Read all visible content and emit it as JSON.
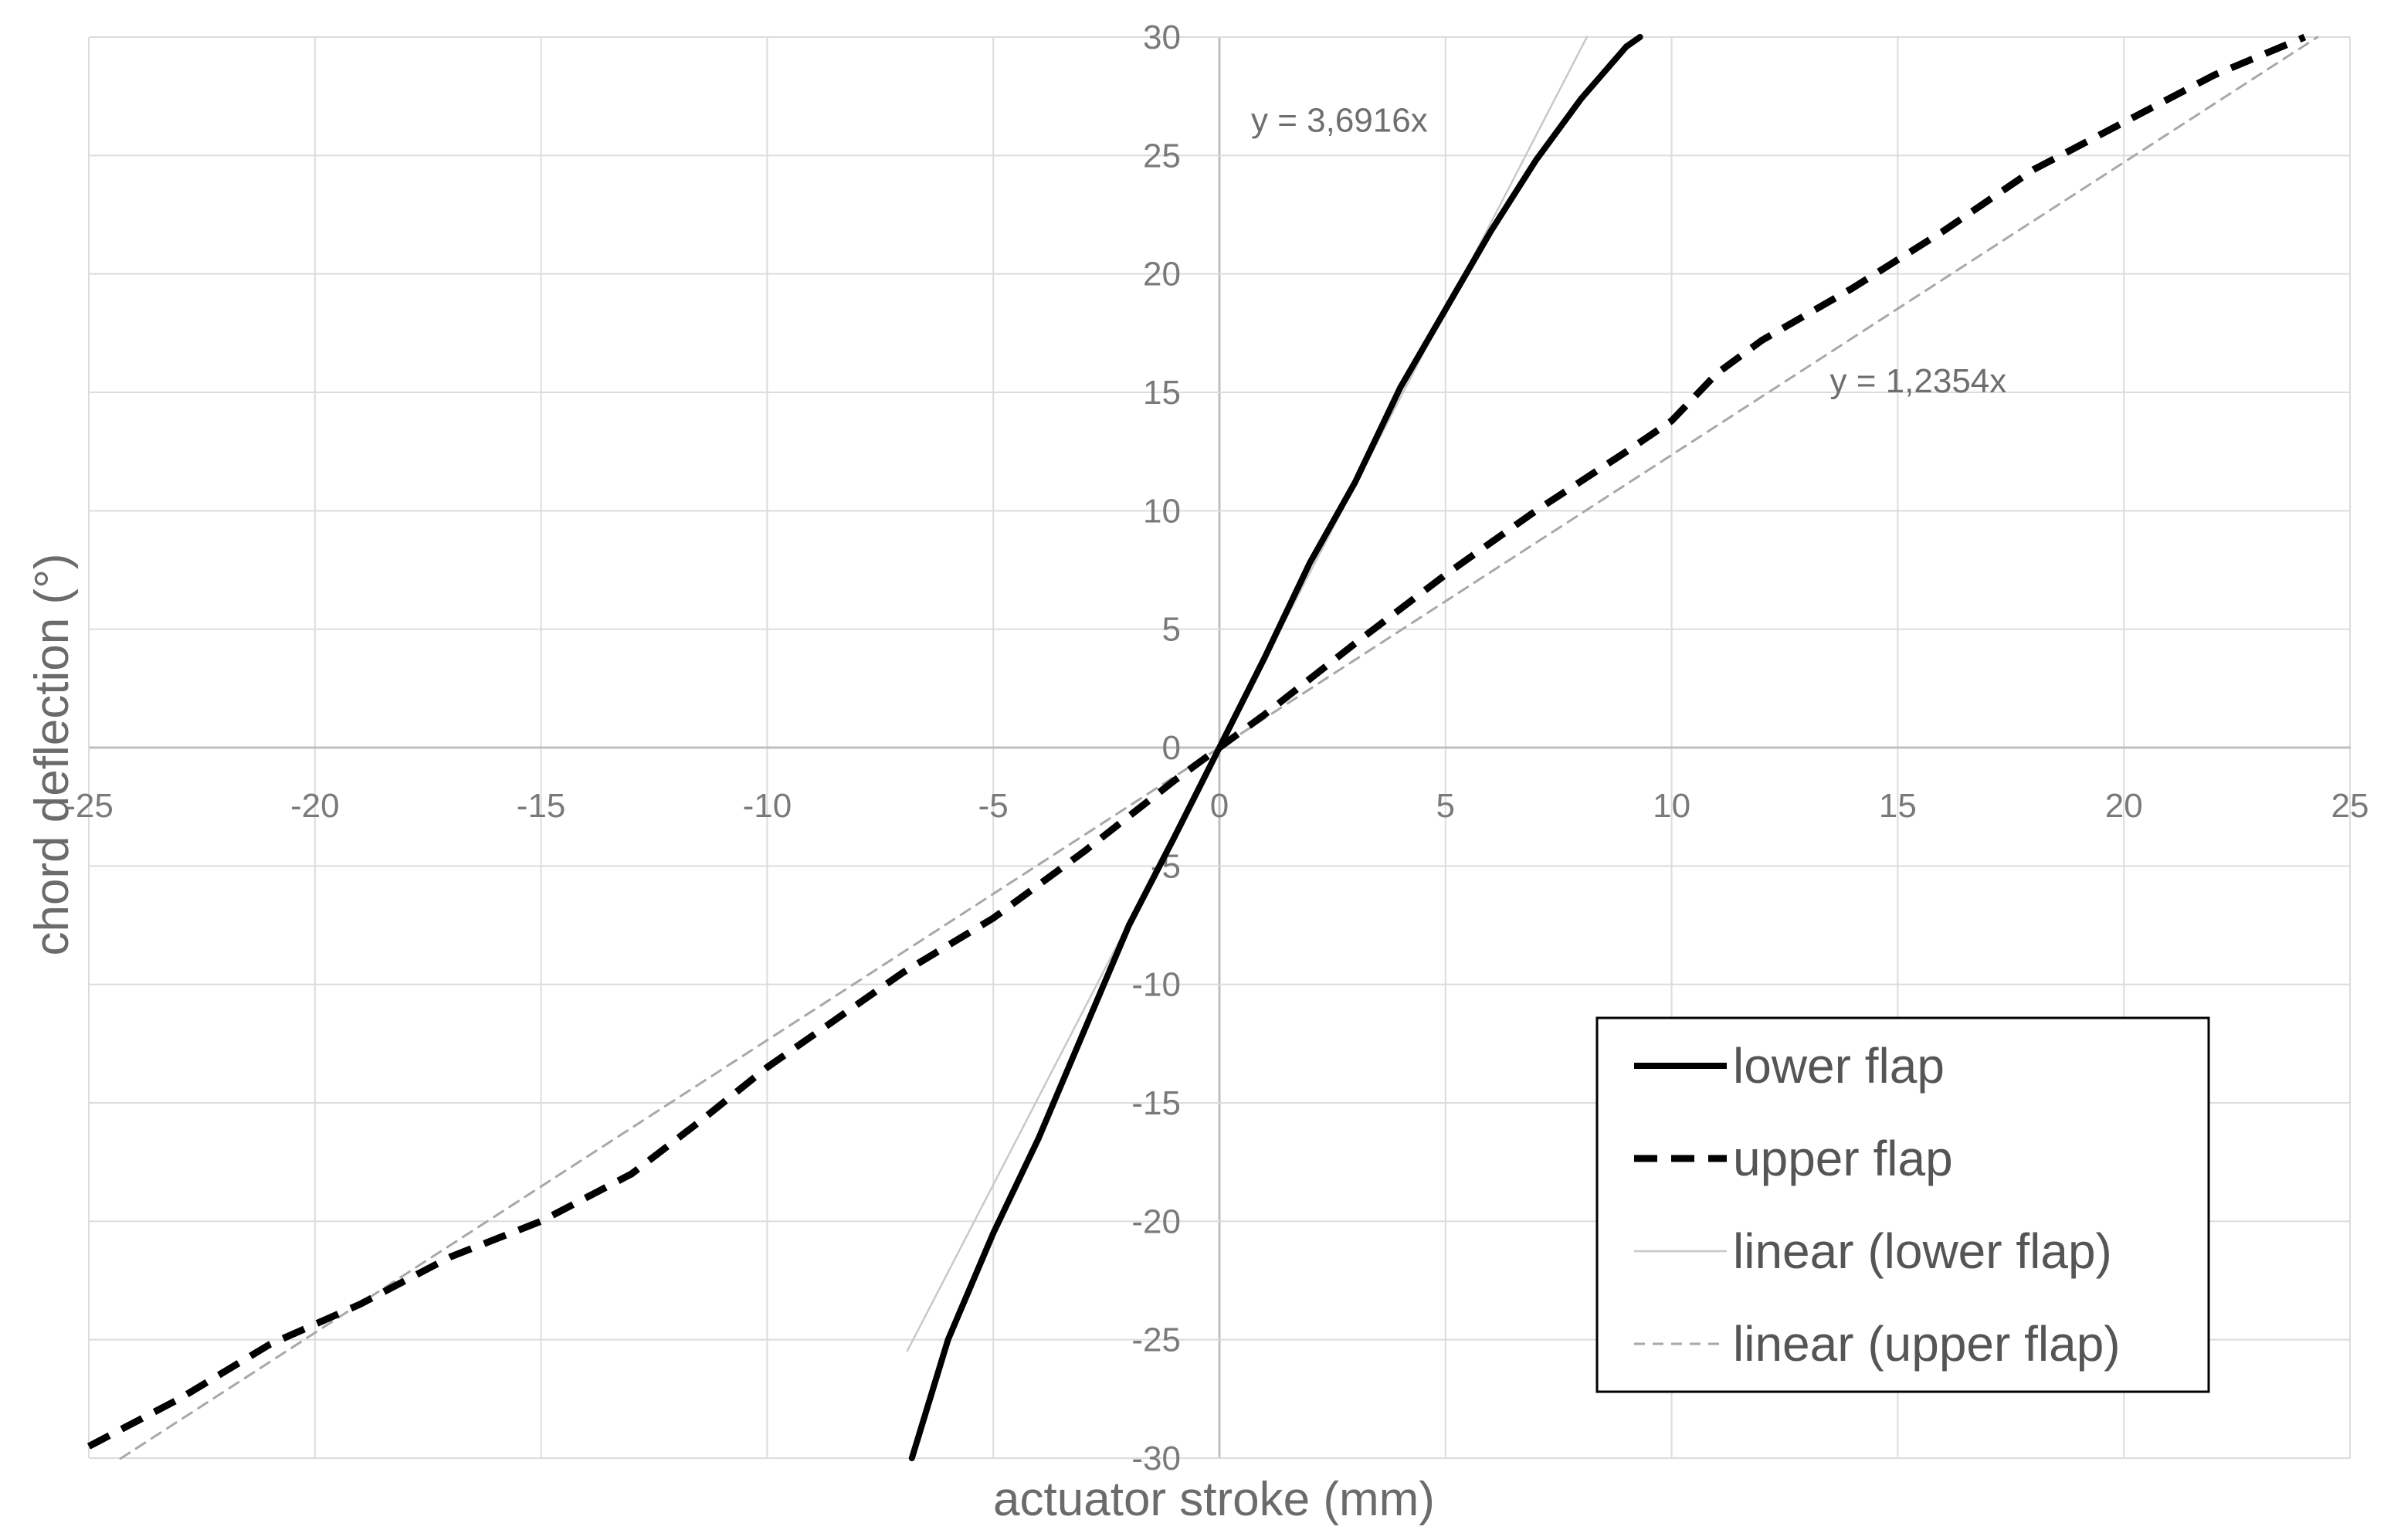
{
  "chart_data": {
    "type": "line",
    "xlabel": "actuator stroke (mm)",
    "ylabel": "chord deflection (°)",
    "xlim": [
      -25,
      25
    ],
    "ylim": [
      -30,
      30
    ],
    "x_ticks": [
      -25,
      -20,
      -15,
      -10,
      -5,
      0,
      5,
      10,
      15,
      20,
      25
    ],
    "y_ticks": [
      30,
      25,
      20,
      15,
      10,
      5,
      0,
      -5,
      -10,
      -15,
      -20,
      -25,
      -30
    ],
    "grid": true,
    "legend_position": "bottom-right",
    "series": [
      {
        "name": "lower flap",
        "style": "solid-thick",
        "color": "#000000",
        "points": [
          [
            -6.8,
            -30
          ],
          [
            -6.0,
            -25
          ],
          [
            -5.0,
            -20.5
          ],
          [
            -4.0,
            -16.5
          ],
          [
            -3.0,
            -12
          ],
          [
            -2.0,
            -7.5
          ],
          [
            -1.0,
            -3.8
          ],
          [
            0,
            0
          ],
          [
            1.0,
            3.8
          ],
          [
            2.0,
            7.8
          ],
          [
            3.0,
            11.2
          ],
          [
            4.0,
            15.2
          ],
          [
            5.0,
            18.5
          ],
          [
            6.0,
            21.8
          ],
          [
            7.0,
            24.8
          ],
          [
            8.0,
            27.4
          ],
          [
            9.0,
            29.6
          ],
          [
            9.3,
            30
          ]
        ]
      },
      {
        "name": "upper flap",
        "style": "dashed-thick",
        "color": "#000000",
        "points": [
          [
            -25,
            -29.5
          ],
          [
            -23,
            -27.5
          ],
          [
            -21,
            -25.2
          ],
          [
            -19,
            -23.5
          ],
          [
            -17,
            -21.5
          ],
          [
            -15,
            -20
          ],
          [
            -13,
            -18
          ],
          [
            -11.5,
            -15.8
          ],
          [
            -10,
            -13.5
          ],
          [
            -7,
            -9.5
          ],
          [
            -5,
            -7.2
          ],
          [
            -3,
            -4.4
          ],
          [
            -1,
            -1.4
          ],
          [
            0,
            0
          ],
          [
            1,
            1.4
          ],
          [
            3,
            4.4
          ],
          [
            5,
            7.3
          ],
          [
            7,
            10
          ],
          [
            9,
            12.5
          ],
          [
            10,
            13.8
          ],
          [
            11,
            15.8
          ],
          [
            12,
            17.2
          ],
          [
            14,
            19.4
          ],
          [
            16,
            21.8
          ],
          [
            18,
            24.4
          ],
          [
            20,
            26.4
          ],
          [
            22,
            28.4
          ],
          [
            24,
            30
          ]
        ]
      },
      {
        "name": "linear (lower flap)",
        "style": "solid-thin",
        "color": "#c8c8c8",
        "slope": 3.6916,
        "x_range": [
          -6.9,
          8.13
        ]
      },
      {
        "name": "linear (upper flap)",
        "style": "dashed-thin",
        "color": "#a8a8a8",
        "slope": 1.2354,
        "x_range": [
          -24.3,
          24.28
        ]
      }
    ],
    "annotations": [
      {
        "text": "y = 3,6916x",
        "x": 0.7,
        "y": 26
      },
      {
        "text": "y = 1,2354x",
        "x": 13.5,
        "y": 15
      }
    ]
  },
  "colors": {
    "grid": "#dcdcdc",
    "zero_axis": "#bfbfbf",
    "legend_border": "#000000"
  }
}
